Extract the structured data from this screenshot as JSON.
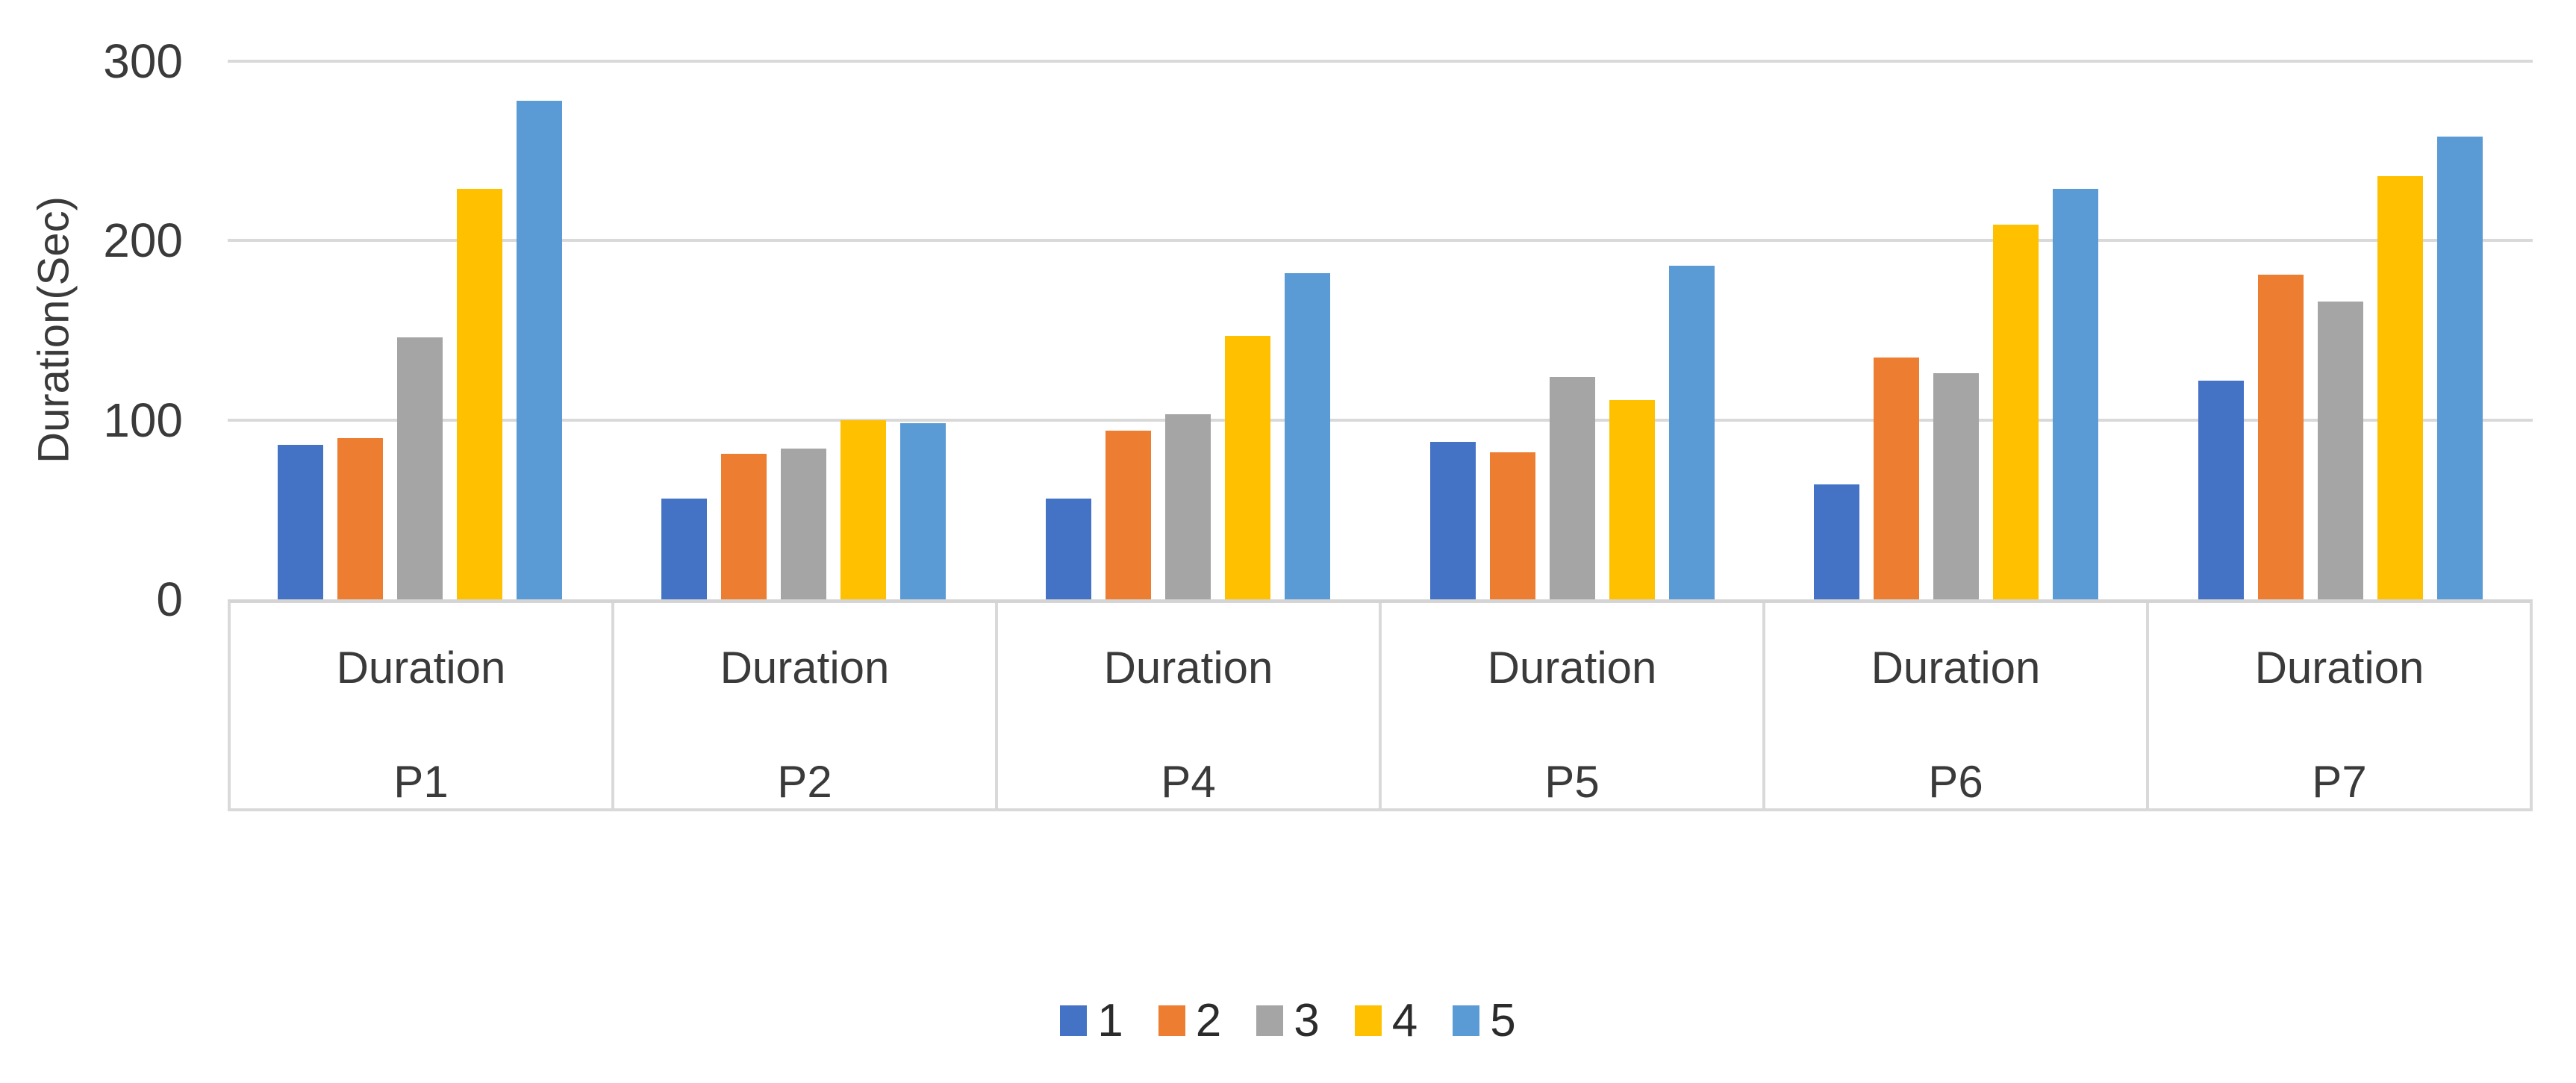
{
  "chart_data": {
    "type": "bar",
    "title": "",
    "ylabel": "Duration(Sec)",
    "xlabel": "",
    "ylim": [
      0,
      300
    ],
    "yticks": [
      0,
      100,
      200,
      300
    ],
    "grid": "horizontal",
    "legend_position": "bottom",
    "group_label": "Duration",
    "categories": [
      "P1",
      "P2",
      "P4",
      "P5",
      "P6",
      "P7"
    ],
    "series": [
      {
        "name": "1",
        "color": "#4472C4",
        "values": [
          86,
          56,
          56,
          88,
          64,
          122
        ]
      },
      {
        "name": "2",
        "color": "#ED7D31",
        "values": [
          90,
          81,
          94,
          82,
          135,
          181
        ]
      },
      {
        "name": "3",
        "color": "#A5A5A5",
        "values": [
          146,
          84,
          103,
          124,
          126,
          166
        ]
      },
      {
        "name": "4",
        "color": "#FFC000",
        "values": [
          229,
          100,
          147,
          111,
          209,
          236
        ]
      },
      {
        "name": "5",
        "color": "#5B9BD5",
        "values": [
          278,
          98,
          182,
          186,
          229,
          258
        ]
      }
    ]
  },
  "colors": {
    "gridline": "#D9D9D9",
    "axis_line": "#D4D4D4",
    "text": "#3A3A3A",
    "background": "#FFFFFF"
  }
}
